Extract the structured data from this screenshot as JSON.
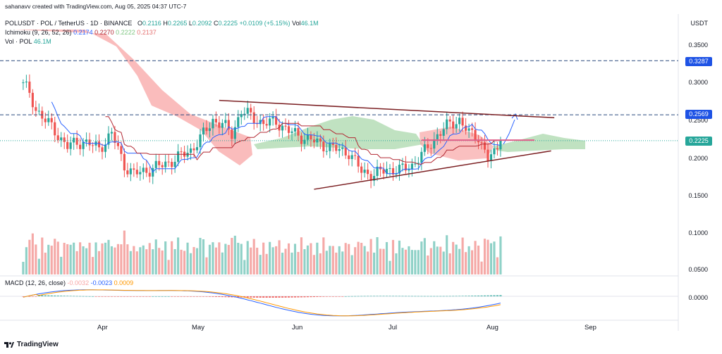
{
  "attribution": "sahanavv created with TradingView.com, Aug 05, 2025 04:37 UTC-7",
  "currency": "USDT",
  "legend": {
    "symbol": "POLUSDT · POL / TetherUS · 1D · BINANCE",
    "o_label": "O",
    "o": "0.2116",
    "h_label": "H",
    "h": "0.2265",
    "l_label": "L",
    "l": "0.2092",
    "c_label": "C",
    "c": "0.2225",
    "change": "+0.0109 (+5.15%)",
    "vol_label": "Vol",
    "vol": "46.1M",
    "ichimoku_label": "Ichimoku (9, 26, 52, 26)",
    "ichimoku_values": [
      "0.2174",
      "0.2270",
      "0.2222",
      "0.2137"
    ],
    "volume_label": "Vol · POL",
    "volume_value": "46.1M",
    "macd_label": "MACD (12, 26, close)",
    "macd_values": [
      "-0.0032",
      "-0.0023",
      "0.0009"
    ]
  },
  "price_tags": {
    "upper": "0.3287",
    "mid": "0.2569",
    "last": "0.2225"
  },
  "price_axis": [
    "0.3500",
    "0.3000",
    "0.2500",
    "0.2000",
    "0.1500",
    "0.1000",
    "0.0500"
  ],
  "macd_axis": "0.0000",
  "months": [
    "Apr",
    "May",
    "Jun",
    "Jul",
    "Aug",
    "Sep"
  ],
  "brand": "TradingView",
  "colors": {
    "up": "#26a69a",
    "down": "#ef5350",
    "tenkan": "#2962ff",
    "kijun": "#b22833",
    "cloud_bull": "#a5d6a7",
    "cloud_bear": "#f8a5a5",
    "triangle": "#7b1f22",
    "dashed": "#2a4a7f",
    "macd": "#2962ff",
    "signal": "#ff9800"
  },
  "chart_data": {
    "type": "candlestick",
    "symbol": "POLUSDT",
    "timeframe": "1D",
    "ylim": [
      0.05,
      0.36
    ],
    "x_range": [
      "2025-03-07",
      "2025-09-15"
    ],
    "last": {
      "open": 0.2116,
      "high": 0.2265,
      "low": 0.2092,
      "close": 0.2225,
      "volume": "46.1M"
    },
    "horizontal_levels": [
      0.3287,
      0.2569,
      0.2225
    ],
    "trendlines": {
      "upper": {
        "from": [
          "2025-05-08",
          0.276
        ],
        "to": [
          "2025-08-22",
          0.253
        ]
      },
      "lower": {
        "from": [
          "2025-06-07",
          0.158
        ],
        "to": [
          "2025-08-21",
          0.209
        ]
      }
    },
    "close_series": [
      {
        "x": "2025-03-07",
        "y": 0.3
      },
      {
        "x": "2025-03-11",
        "y": 0.265
      },
      {
        "x": "2025-03-16",
        "y": 0.24
      },
      {
        "x": "2025-03-21",
        "y": 0.215
      },
      {
        "x": "2025-03-26",
        "y": 0.222
      },
      {
        "x": "2025-03-31",
        "y": 0.212
      },
      {
        "x": "2025-04-04",
        "y": 0.232
      },
      {
        "x": "2025-04-08",
        "y": 0.19
      },
      {
        "x": "2025-04-11",
        "y": 0.178
      },
      {
        "x": "2025-04-15",
        "y": 0.183
      },
      {
        "x": "2025-04-20",
        "y": 0.19
      },
      {
        "x": "2025-04-25",
        "y": 0.2
      },
      {
        "x": "2025-04-29",
        "y": 0.21
      },
      {
        "x": "2025-05-02",
        "y": 0.225
      },
      {
        "x": "2025-05-06",
        "y": 0.25
      },
      {
        "x": "2025-05-09",
        "y": 0.244
      },
      {
        "x": "2025-05-12",
        "y": 0.232
      },
      {
        "x": "2025-05-15",
        "y": 0.262
      },
      {
        "x": "2025-05-18",
        "y": 0.255
      },
      {
        "x": "2025-05-22",
        "y": 0.245
      },
      {
        "x": "2025-05-26",
        "y": 0.248
      },
      {
        "x": "2025-05-30",
        "y": 0.235
      },
      {
        "x": "2025-06-03",
        "y": 0.228
      },
      {
        "x": "2025-06-08",
        "y": 0.22
      },
      {
        "x": "2025-06-13",
        "y": 0.212
      },
      {
        "x": "2025-06-18",
        "y": 0.207
      },
      {
        "x": "2025-06-22",
        "y": 0.182
      },
      {
        "x": "2025-06-26",
        "y": 0.177
      },
      {
        "x": "2025-06-30",
        "y": 0.185
      },
      {
        "x": "2025-07-04",
        "y": 0.183
      },
      {
        "x": "2025-07-08",
        "y": 0.19
      },
      {
        "x": "2025-07-12",
        "y": 0.208
      },
      {
        "x": "2025-07-16",
        "y": 0.23
      },
      {
        "x": "2025-07-20",
        "y": 0.245
      },
      {
        "x": "2025-07-23",
        "y": 0.25
      },
      {
        "x": "2025-07-26",
        "y": 0.232
      },
      {
        "x": "2025-07-29",
        "y": 0.228
      },
      {
        "x": "2025-08-01",
        "y": 0.198
      },
      {
        "x": "2025-08-03",
        "y": 0.205
      },
      {
        "x": "2025-08-05",
        "y": 0.2225
      }
    ]
  }
}
